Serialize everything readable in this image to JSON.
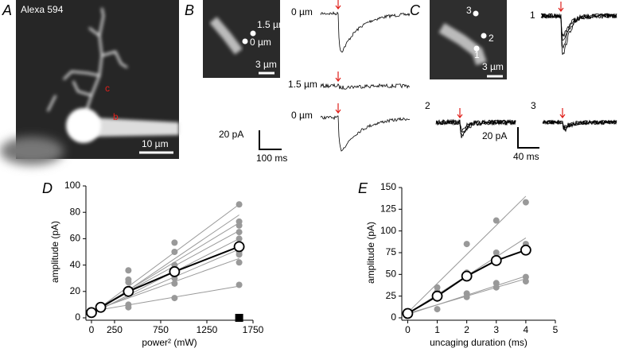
{
  "panels": {
    "A": {
      "label": "A",
      "title": "Alexa 594",
      "marks": [
        "c",
        "b"
      ],
      "scale": "10 µm"
    },
    "B": {
      "label": "B",
      "spots": [
        "1.5 µm",
        "0 µm"
      ],
      "image_scale": "3 µm",
      "traces": [
        "0 µm",
        "1.5 µm",
        "0 µm"
      ],
      "scale_y": "20 pA",
      "scale_x": "100 ms"
    },
    "C": {
      "label": "C",
      "spots": [
        "3",
        "2",
        "1"
      ],
      "image_scale": "3 µm",
      "traces": [
        "1",
        "2",
        "3"
      ],
      "scale_y": "20 pA",
      "scale_x": "40 ms"
    }
  },
  "chart_data": [
    {
      "type": "line",
      "label": "D",
      "xlabel": "power² (mW)",
      "ylabel": "amplitude (pA)",
      "xlim": [
        -60,
        1750
      ],
      "ylim": [
        0,
        100
      ],
      "xticks": [
        0,
        250,
        750,
        1250,
        1750
      ],
      "yticks": [
        0,
        20,
        40,
        60,
        80,
        100
      ],
      "series": [
        {
          "style": "fit",
          "color": "#999999",
          "x": [
            0,
            1600
          ],
          "values": [
            3,
            86
          ]
        },
        {
          "style": "fit",
          "color": "#999999",
          "x": [
            0,
            1600
          ],
          "values": [
            2,
            78
          ]
        },
        {
          "style": "fit",
          "color": "#999999",
          "x": [
            0,
            1600
          ],
          "values": [
            4,
            72
          ]
        },
        {
          "style": "fit",
          "color": "#999999",
          "x": [
            0,
            1600
          ],
          "values": [
            5,
            66
          ]
        },
        {
          "style": "fit",
          "color": "#999999",
          "x": [
            0,
            1600
          ],
          "values": [
            3,
            60
          ]
        },
        {
          "style": "fit",
          "color": "#999999",
          "x": [
            0,
            1600
          ],
          "values": [
            4,
            52
          ]
        },
        {
          "style": "fit",
          "color": "#999999",
          "x": [
            0,
            1600
          ],
          "values": [
            5,
            45
          ]
        },
        {
          "style": "fit",
          "color": "#999999",
          "x": [
            0,
            1600
          ],
          "values": [
            5,
            24
          ]
        },
        {
          "style": "scatter",
          "color": "#999999",
          "x": [
            400,
            400,
            400,
            400,
            400,
            400,
            900,
            900,
            900,
            900,
            900,
            900,
            1600,
            1600,
            1600,
            1600,
            1600,
            1600,
            1600,
            1600,
            1600,
            1600
          ],
          "values": [
            36,
            29,
            27,
            22,
            10,
            8,
            57,
            50,
            40,
            30,
            26,
            15,
            86,
            73,
            70,
            65,
            60,
            55,
            50,
            48,
            42,
            25
          ]
        },
        {
          "style": "mean",
          "color": "#000000",
          "x": [
            0,
            100,
            400,
            900,
            1600
          ],
          "values": [
            4,
            8,
            20,
            35,
            54
          ]
        },
        {
          "style": "square",
          "color": "#000000",
          "x": [
            1600
          ],
          "values": [
            0
          ]
        }
      ]
    },
    {
      "type": "line",
      "label": "E",
      "xlabel": "uncaging duration (ms)",
      "ylabel": "amplitude (pA)",
      "xlim": [
        -0.2,
        5
      ],
      "ylim": [
        0,
        150
      ],
      "xticks": [
        0,
        1,
        2,
        3,
        4,
        5
      ],
      "yticks": [
        0,
        25,
        50,
        75,
        100,
        125,
        150
      ],
      "series": [
        {
          "style": "fit",
          "color": "#999999",
          "x": [
            0,
            4
          ],
          "values": [
            6,
            140
          ]
        },
        {
          "style": "fit",
          "color": "#999999",
          "x": [
            0,
            4
          ],
          "values": [
            5,
            92
          ]
        },
        {
          "style": "fit",
          "color": "#999999",
          "x": [
            0,
            4
          ],
          "values": [
            4,
            48
          ]
        },
        {
          "style": "fit",
          "color": "#999999",
          "x": [
            0,
            4
          ],
          "values": [
            5,
            45
          ]
        },
        {
          "style": "scatter",
          "color": "#999999",
          "x": [
            1,
            1,
            1,
            1,
            2,
            2,
            2,
            2,
            2,
            3,
            3,
            3,
            3,
            4,
            4,
            4,
            4
          ],
          "values": [
            35,
            30,
            22,
            10,
            85,
            52,
            48,
            28,
            24,
            112,
            75,
            40,
            35,
            133,
            85,
            47,
            42
          ]
        },
        {
          "style": "mean",
          "color": "#000000",
          "x": [
            0,
            1,
            2,
            3,
            4
          ],
          "values": [
            5,
            25,
            48,
            66,
            78
          ]
        }
      ]
    }
  ]
}
